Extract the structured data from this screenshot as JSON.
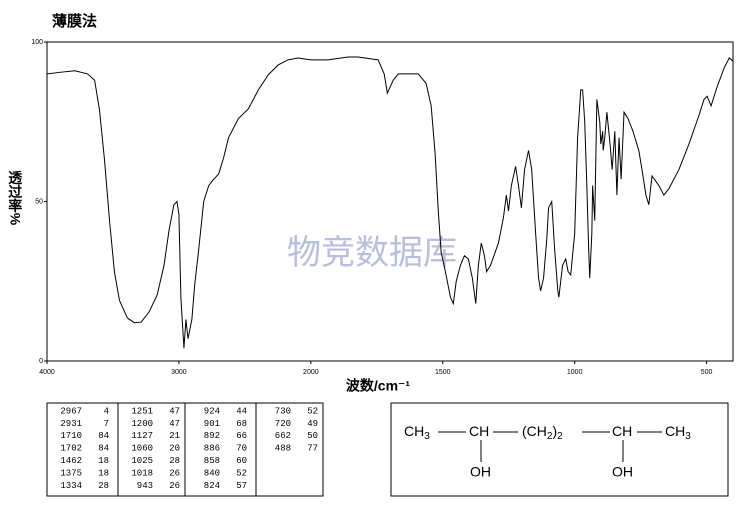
{
  "title": "薄膜法",
  "watermark": "物竞数据库",
  "chart_data": {
    "type": "line",
    "xlabel": "波数/cm⁻¹",
    "ylabel": "透过率%",
    "color": "#000000",
    "xlim": [
      4000,
      400
    ],
    "x_scale_change_at": 2000,
    "ylim": [
      0,
      100
    ],
    "xticks": [
      4000,
      3000,
      2000,
      1500,
      1000,
      500
    ],
    "yticks": [
      0,
      50,
      100
    ],
    "x": [
      4000,
      3902,
      3789,
      3692,
      3639,
      3602,
      3564,
      3526,
      3489,
      3451,
      3391,
      3338,
      3286,
      3226,
      3165,
      3113,
      3075,
      3038,
      3015,
      3000,
      2985,
      2962,
      2947,
      2931,
      2902,
      2880,
      2850,
      2812,
      2774,
      2737,
      2699,
      2662,
      2624,
      2549,
      2474,
      2398,
      2323,
      2248,
      2173,
      2098,
      2000,
      1935,
      1859,
      1821,
      1745,
      1722,
      1710,
      1699,
      1688,
      1669,
      1593,
      1563,
      1544,
      1529,
      1517,
      1506,
      1490,
      1471,
      1460,
      1449,
      1433,
      1418,
      1403,
      1388,
      1375,
      1365,
      1354,
      1342,
      1334,
      1319,
      1289,
      1270,
      1259,
      1251,
      1240,
      1224,
      1213,
      1202,
      1190,
      1175,
      1163,
      1148,
      1137,
      1129,
      1118,
      1106,
      1099,
      1087,
      1076,
      1064,
      1060,
      1046,
      1034,
      1025,
      1015,
      1000,
      989,
      977,
      970,
      962,
      954,
      947,
      943,
      935,
      932,
      924,
      916,
      905,
      901,
      894,
      892,
      886,
      878,
      866,
      858,
      848,
      840,
      832,
      824,
      813,
      798,
      779,
      757,
      745,
      730,
      719,
      707,
      681,
      662,
      643,
      605,
      567,
      529,
      510,
      498,
      483,
      460,
      433,
      414,
      400
    ],
    "values": [
      90,
      90.5,
      91,
      90,
      88,
      78.7,
      63,
      44,
      28,
      19,
      13.5,
      12,
      12.2,
      15.4,
      20.7,
      30,
      41,
      49,
      50,
      46,
      19.7,
      4,
      13,
      7,
      13,
      24,
      35,
      50,
      55,
      57,
      58.6,
      63.6,
      70,
      76,
      79,
      85,
      89.7,
      92.8,
      94.4,
      95,
      94.4,
      94.4,
      95.3,
      95.3,
      94.4,
      90,
      84,
      86,
      88,
      90,
      90,
      87,
      80,
      65,
      47,
      34,
      28,
      20,
      18,
      25,
      30,
      33,
      32,
      26,
      18,
      30,
      37,
      33,
      28,
      30,
      37,
      45,
      52,
      47,
      55,
      61,
      55,
      48,
      60,
      66,
      60,
      40,
      26,
      22,
      26,
      38,
      48,
      50,
      35,
      22,
      20,
      30,
      32,
      28,
      27,
      40,
      70,
      85,
      85,
      75,
      55,
      35,
      26,
      40,
      55,
      44,
      82,
      75,
      68,
      72,
      66,
      70,
      78,
      68,
      60,
      72,
      52,
      70,
      57,
      78,
      76,
      72,
      66,
      60,
      52,
      49,
      58,
      55,
      52,
      54,
      60,
      68,
      77,
      82,
      83,
      80,
      86,
      92,
      95,
      94
    ]
  },
  "peak_table": {
    "columns": [
      [
        [
          "2967",
          "4"
        ],
        [
          "2931",
          "7"
        ],
        [
          "1710",
          "84"
        ],
        [
          "1702",
          "84"
        ],
        [
          "1462",
          "18"
        ],
        [
          "1375",
          "18"
        ],
        [
          "1334",
          "28"
        ]
      ],
      [
        [
          "1251",
          "47"
        ],
        [
          "1200",
          "47"
        ],
        [
          "1127",
          "21"
        ],
        [
          "1060",
          "20"
        ],
        [
          "1025",
          "28"
        ],
        [
          "1018",
          "26"
        ],
        [
          "943",
          "26"
        ]
      ],
      [
        [
          "924",
          "44"
        ],
        [
          "901",
          "68"
        ],
        [
          "892",
          "66"
        ],
        [
          "886",
          "70"
        ],
        [
          "858",
          "60"
        ],
        [
          "840",
          "52"
        ],
        [
          "824",
          "57"
        ]
      ],
      [
        [
          "730",
          "52"
        ],
        [
          "720",
          "49"
        ],
        [
          "662",
          "50"
        ],
        [
          "488",
          "77"
        ]
      ]
    ]
  },
  "structure": {
    "groups": [
      {
        "text": "CH",
        "sub": "3"
      },
      {
        "text": "CH"
      },
      {
        "text": "(CH",
        "sub": "2",
        "after": ")",
        "sub2": "2"
      },
      {
        "text": "CH"
      },
      {
        "text": "CH",
        "sub": "3"
      }
    ],
    "substituents": [
      "OH",
      "OH"
    ]
  }
}
